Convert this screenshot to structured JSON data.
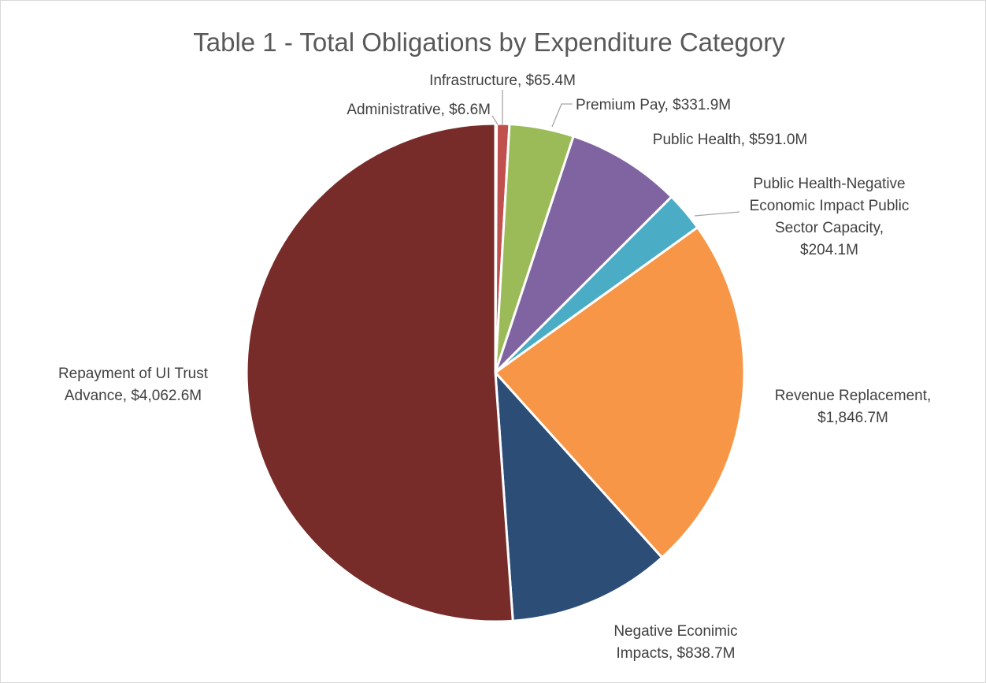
{
  "chart_data": {
    "type": "pie",
    "title": "Table 1 - Total Obligations by Expenditure Category",
    "unit": "$M",
    "slices": [
      {
        "name": "Administrative",
        "value": 6.6,
        "label": [
          "Administrative, $6.6M"
        ],
        "color": "#4f81bd"
      },
      {
        "name": "Infrastructure",
        "value": 65.4,
        "label": [
          "Infrastructure, $65.4M"
        ],
        "color": "#c0504d"
      },
      {
        "name": "Premium Pay",
        "value": 331.9,
        "label": [
          "Premium Pay, $331.9M"
        ],
        "color": "#9bbb59"
      },
      {
        "name": "Public Health",
        "value": 591.0,
        "label": [
          "Public Health, $591.0M"
        ],
        "color": "#8064a2"
      },
      {
        "name": "Public Health-Negative Economic Impact Public Sector Capacity",
        "value": 204.1,
        "label": [
          "Public Health-Negative",
          "Economic Impact Public",
          "Sector Capacity,",
          "$204.1M"
        ],
        "color": "#4bacc6"
      },
      {
        "name": "Revenue Replacement",
        "value": 1846.7,
        "label": [
          "Revenue Replacement,",
          "$1,846.7M"
        ],
        "color": "#f79646"
      },
      {
        "name": "Negative Econimic Impacts",
        "value": 838.7,
        "label": [
          "Negative Econimic",
          "Impacts, $838.7M"
        ],
        "color": "#2c4d75"
      },
      {
        "name": "Repayment of UI Trust Advance",
        "value": 4062.6,
        "label": [
          "Repayment of UI Trust",
          "Advance, $4,062.6M"
        ],
        "color": "#772c2a"
      }
    ]
  }
}
